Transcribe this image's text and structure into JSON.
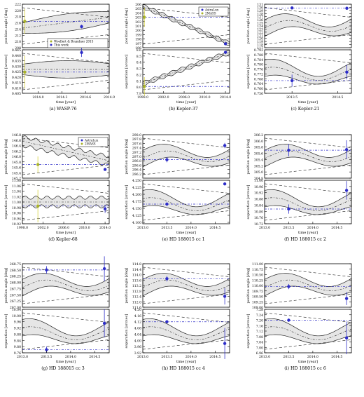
{
  "figure": {
    "panels": [
      {
        "id": "a",
        "caption": "(a) WASP-76"
      },
      {
        "id": "b",
        "caption": "(b) Kepler-37"
      },
      {
        "id": "c",
        "caption": "(c) Kepler-21"
      },
      {
        "id": "d",
        "caption": "(d) Kepler-68"
      },
      {
        "id": "e",
        "caption": "(e) HD 188015 cc 1"
      },
      {
        "id": "f",
        "caption": "(f) HD 188015 cc 2"
      },
      {
        "id": "g",
        "caption": "(g) HD 188015 cc 3"
      },
      {
        "id": "h",
        "caption": "(h) HD 188015 cc 4"
      },
      {
        "id": "i",
        "caption": "(i) HD 188015 cc 6"
      }
    ],
    "ylabel_pa": "position angle [deg]",
    "ylabel_sep": "separation [arcsec]",
    "xlabel": "time [year]"
  },
  "chart_data": [
    {
      "panel": "a",
      "type": "scatter",
      "xlim": [
        2013.8,
        2014.9
      ],
      "xticks": [
        "2014.0",
        "2014.3",
        "2014.6",
        "2014.9"
      ],
      "xticks_v": [
        2014.0,
        2014.3,
        2014.6,
        2014.9
      ],
      "pa": {
        "ylim": [
          208,
          222
        ],
        "yticks": [
          "208",
          "210",
          "212",
          "214",
          "216",
          "218",
          "220",
          "222"
        ],
        "yticks_v": [
          208,
          210,
          212,
          214,
          216,
          218,
          220,
          222
        ],
        "points": [
          {
            "x": 2013.83,
            "y": 216.5,
            "err": 4.0,
            "series": "Woellert & Brandner 2015"
          },
          {
            "x": 2014.55,
            "y": 214.8,
            "err": 0.6,
            "series": "This work"
          }
        ],
        "blue_line": 216.5,
        "band": {
          "upper": [
            218.8,
            219.5,
            219.9
          ],
          "lower": [
            212.0,
            214.0,
            216.3
          ],
          "mid": [
            215.5,
            216.5,
            217.8
          ]
        }
      },
      "sep": {
        "ylim": [
          0.405,
          0.445
        ],
        "yticks": [
          "0.405",
          "0.410",
          "0.415",
          "0.420",
          "0.425",
          "0.430",
          "0.435",
          "0.440",
          "0.445"
        ],
        "yticks_v": [
          0.405,
          0.41,
          0.415,
          0.42,
          0.425,
          0.43,
          0.435,
          0.44,
          0.445
        ],
        "points": [
          {
            "x": 2013.83,
            "y": 0.4245,
            "err": 0.015,
            "series": "Woellert & Brandner 2015"
          },
          {
            "x": 2014.55,
            "y": 0.4425,
            "err": 0.004,
            "series": "This work"
          }
        ],
        "blue_line": 0.4245
      },
      "legend": [
        "Woellert & Brandner 2015",
        "This work"
      ]
    },
    {
      "panel": "b",
      "type": "scatter",
      "xlim": [
        1998,
        2014.8
      ],
      "xticks": [
        "1998.0",
        "2002.0",
        "2006.0",
        "2010.0",
        "2014.0"
      ],
      "xticks_v": [
        1998,
        2002,
        2006,
        2010,
        2014
      ],
      "pa": {
        "ylim": [
          196,
          206
        ],
        "yticks": [
          "196",
          "197",
          "198",
          "199",
          "200",
          "201",
          "202",
          "203",
          "204",
          "205",
          "206"
        ],
        "yticks_v": [
          196,
          197,
          198,
          199,
          200,
          201,
          202,
          203,
          204,
          205,
          206
        ],
        "points": [
          {
            "x": 1998.3,
            "y": 203.0,
            "err": 2.2,
            "series": "2MASS"
          },
          {
            "x": 2014.0,
            "y": 196.9,
            "err": 0.15,
            "series": "AstraLux"
          }
        ]
      },
      "sep": {
        "ylim": [
          7.9,
          8.6
        ],
        "yticks": [
          "7.9",
          "8.0",
          "8.1",
          "8.2",
          "8.3",
          "8.4",
          "8.5",
          "8.6"
        ],
        "yticks_v": [
          7.9,
          8.0,
          8.1,
          8.2,
          8.3,
          8.4,
          8.5,
          8.6
        ],
        "points": [
          {
            "x": 1998.3,
            "y": 8.01,
            "err": 0.15,
            "series": "2MASS"
          },
          {
            "x": 2014.0,
            "y": 8.56,
            "err": 0.02,
            "series": "AstraLux"
          }
        ]
      },
      "legend": [
        "AstraLux",
        "2MASS"
      ]
    },
    {
      "panel": "c",
      "type": "scatter",
      "xlim": [
        2012.9,
        2014.8
      ],
      "xticks": [
        "2013.5",
        "2014.5"
      ],
      "xticks_v": [
        2013.5,
        2014.5
      ],
      "pa": {
        "ylim": [
          117,
          131
        ],
        "yticks": [
          "117",
          "118",
          "119",
          "120",
          "121",
          "122",
          "123",
          "124",
          "125",
          "126",
          "127",
          "128",
          "129",
          "130",
          "131"
        ],
        "yticks_v": [
          117,
          118,
          119,
          120,
          121,
          122,
          123,
          124,
          125,
          126,
          127,
          128,
          129,
          130,
          131
        ],
        "points": [
          {
            "x": 2013.5,
            "y": 129.8,
            "err": 0.5
          },
          {
            "x": 2014.7,
            "y": 129.7,
            "err": 0.4
          }
        ]
      },
      "sep": {
        "ylim": [
          0.756,
          0.792
        ],
        "yticks": [
          "0.756",
          "0.760",
          "0.764",
          "0.768",
          "0.772",
          "0.776",
          "0.780",
          "0.784",
          "0.788",
          "0.792"
        ],
        "yticks_v": [
          0.756,
          0.76,
          0.764,
          0.768,
          0.772,
          0.776,
          0.78,
          0.784,
          0.788,
          0.792
        ],
        "points": [
          {
            "x": 2013.5,
            "y": 0.7665,
            "err": 0.005
          },
          {
            "x": 2014.7,
            "y": 0.7735,
            "err": 0.006
          }
        ]
      }
    },
    {
      "panel": "d",
      "type": "scatter",
      "xlim": [
        1998,
        2014.8
      ],
      "xticks": [
        "1998.0",
        "2002.0",
        "2006.0",
        "2010.0",
        "2014.0"
      ],
      "xticks_v": [
        1998,
        2002,
        2006,
        2010,
        2014
      ],
      "pa": {
        "ylim": [
          145.2,
          146.8
        ],
        "yticks": [
          "145.2",
          "145.4",
          "145.6",
          "145.8",
          "146.0",
          "146.2",
          "146.4",
          "146.6",
          "146.8"
        ],
        "yticks_v": [
          145.2,
          145.4,
          145.6,
          145.8,
          146.0,
          146.2,
          146.4,
          146.6,
          146.8
        ],
        "points": [
          {
            "x": 2001.0,
            "y": 145.7,
            "err": 0.3,
            "series": "2MASS"
          },
          {
            "x": 2014.0,
            "y": 145.52,
            "err": 0.05,
            "series": "AstraLux"
          }
        ]
      },
      "sep": {
        "ylim": [
          10.92,
          11.08
        ],
        "yticks": [
          "10.92",
          "10.94",
          "10.96",
          "10.98",
          "11.00",
          "11.02",
          "11.04",
          "11.06",
          "11.08"
        ],
        "yticks_v": [
          10.92,
          10.94,
          10.96,
          10.98,
          11.0,
          11.02,
          11.04,
          11.06,
          11.08
        ],
        "points": [
          {
            "x": 2001.0,
            "y": 10.985,
            "err": 0.06,
            "series": "2MASS"
          },
          {
            "x": 2014.0,
            "y": 10.975,
            "err": 0.015,
            "series": "AstraLux"
          }
        ]
      },
      "legend": [
        "AstraLux",
        "2MASS"
      ]
    },
    {
      "panel": "e",
      "type": "scatter",
      "xlim": [
        2013.0,
        2014.8
      ],
      "xticks": [
        "2013.0",
        "2013.5",
        "2014.0",
        "2014.5"
      ],
      "xticks_v": [
        2013.0,
        2013.5,
        2014.0,
        2014.5
      ],
      "pa": {
        "ylim": [
          296.0,
          298.0
        ],
        "yticks": [
          "296.2",
          "296.4",
          "296.6",
          "296.8",
          "297.0",
          "297.2",
          "297.4",
          "297.6",
          "297.8",
          "298.0"
        ],
        "yticks_v": [
          296.2,
          296.4,
          296.6,
          296.8,
          297.0,
          297.2,
          297.4,
          297.6,
          297.8,
          298.0
        ],
        "points": [
          {
            "x": 2013.5,
            "y": 296.85,
            "err": 0.12
          },
          {
            "x": 2014.7,
            "y": 297.5,
            "err": 0.12
          }
        ]
      },
      "sep": {
        "ylim": [
          4.095,
          4.25
        ],
        "yticks": [
          "4.100",
          "4.125",
          "4.150",
          "4.175",
          "4.200",
          "4.225",
          "4.250"
        ],
        "yticks_v": [
          4.1,
          4.125,
          4.15,
          4.175,
          4.2,
          4.225,
          4.25
        ],
        "points": [
          {
            "x": 2013.5,
            "y": 4.165,
            "err": 0.006
          },
          {
            "x": 2014.7,
            "y": 4.237,
            "err": 0.005
          }
        ]
      }
    },
    {
      "panel": "f",
      "type": "scatter",
      "xlim": [
        2013.0,
        2014.8
      ],
      "xticks": [
        "2013.0",
        "2013.5",
        "2014.0",
        "2014.5"
      ],
      "xticks_v": [
        2013.0,
        2013.5,
        2014.0,
        2014.5
      ],
      "pa": {
        "ylim": [
          304.8,
          306.2
        ],
        "yticks": [
          "304.8",
          "305.0",
          "305.2",
          "305.4",
          "305.6",
          "305.8",
          "306.0",
          "306.2"
        ],
        "yticks_v": [
          304.8,
          305.0,
          305.2,
          305.4,
          305.6,
          305.8,
          306.0,
          306.2
        ],
        "points": [
          {
            "x": 2013.5,
            "y": 305.7,
            "err": 0.2
          },
          {
            "x": 2014.7,
            "y": 305.72,
            "err": 0.3
          }
        ]
      },
      "sep": {
        "ylim": [
          10.72,
          11.0
        ],
        "yticks": [
          "10.72",
          "10.76",
          "10.80",
          "10.84",
          "10.88",
          "10.92",
          "10.96",
          "11.00"
        ],
        "yticks_v": [
          10.72,
          10.76,
          10.8,
          10.84,
          10.88,
          10.92,
          10.96,
          11.0
        ],
        "points": [
          {
            "x": 2013.5,
            "y": 10.815,
            "err": 0.03
          },
          {
            "x": 2014.7,
            "y": 10.935,
            "err": 0.06
          }
        ]
      }
    },
    {
      "panel": "g",
      "type": "scatter",
      "xlim": [
        2013.0,
        2014.8
      ],
      "xticks": [
        "2013.0",
        "2013.5",
        "2014.0",
        "2014.5"
      ],
      "xticks_v": [
        2013.0,
        2013.5,
        2014.0,
        2014.5
      ],
      "pa": {
        "ylim": [
          267.0,
          268.75
        ],
        "yticks": [
          "267.00",
          "267.25",
          "267.50",
          "267.75",
          "268.00",
          "268.25",
          "268.50",
          "268.75"
        ],
        "yticks_v": [
          267.0,
          267.25,
          267.5,
          267.75,
          268.0,
          268.25,
          268.5,
          268.75
        ],
        "points": [
          {
            "x": 2013.5,
            "y": 268.5,
            "err": 0.15
          },
          {
            "x": 2014.7,
            "y": 268.55,
            "err": 0.5
          }
        ]
      },
      "sep": {
        "ylim": [
          9.76,
          10.04
        ],
        "yticks": [
          "9.76",
          "9.80",
          "9.84",
          "9.88",
          "9.92",
          "9.96",
          "10.00",
          "10.04"
        ],
        "yticks_v": [
          9.76,
          9.8,
          9.84,
          9.88,
          9.92,
          9.96,
          10.0,
          10.04
        ],
        "points": [
          {
            "x": 2013.5,
            "y": 9.78,
            "err": 0.02
          },
          {
            "x": 2014.7,
            "y": 9.95,
            "err": 0.09
          }
        ]
      }
    },
    {
      "panel": "h",
      "type": "scatter",
      "xlim": [
        2013.0,
        2014.8
      ],
      "xticks": [
        "2013.0",
        "2013.5",
        "2014.0",
        "2014.5"
      ],
      "xticks_v": [
        2013.0,
        2013.5,
        2014.0,
        2014.5
      ],
      "pa": {
        "ylim": [
          111.6,
          114.8
        ],
        "yticks": [
          "111.6",
          "112.0",
          "112.4",
          "112.8",
          "113.2",
          "113.6",
          "114.0",
          "114.4",
          "114.8"
        ],
        "yticks_v": [
          111.6,
          112.0,
          112.4,
          112.8,
          113.2,
          113.6,
          114.0,
          114.4,
          114.8
        ],
        "points": [
          {
            "x": 2013.5,
            "y": 113.7,
            "err": 0.2
          },
          {
            "x": 2014.7,
            "y": 112.4,
            "err": 0.6
          }
        ]
      },
      "sep": {
        "ylim": [
          3.92,
          4.2
        ],
        "yticks": [
          "3.92",
          "3.96",
          "4.00",
          "4.04",
          "4.08",
          "4.12",
          "4.16",
          "4.20"
        ],
        "yticks_v": [
          3.92,
          3.96,
          4.0,
          4.04,
          4.08,
          4.12,
          4.16,
          4.2
        ],
        "points": [
          {
            "x": 2013.5,
            "y": 4.12,
            "err": 0.01
          },
          {
            "x": 2014.7,
            "y": 3.98,
            "err": 0.1
          }
        ]
      }
    },
    {
      "panel": "i",
      "type": "scatter",
      "xlim": [
        2013.0,
        2014.8
      ],
      "xticks": [
        "2013.0",
        "2013.5",
        "2014.0",
        "2014.5"
      ],
      "xticks_v": [
        2013.0,
        2013.5,
        2014.0,
        2014.5
      ],
      "pa": {
        "ylim": [
          109.0,
          111.0
        ],
        "yticks": [
          "109.00",
          "109.25",
          "109.50",
          "109.75",
          "110.00",
          "110.25",
          "110.50",
          "110.75",
          "111.00"
        ],
        "yticks_v": [
          109.0,
          109.25,
          109.5,
          109.75,
          110.0,
          110.25,
          110.5,
          110.75,
          111.0
        ],
        "points": [
          {
            "x": 2013.5,
            "y": 109.95,
            "err": 0.12
          },
          {
            "x": 2014.7,
            "y": 109.4,
            "err": 0.3
          }
        ]
      },
      "sep": {
        "ylim": [
          6.96,
          7.28
        ],
        "yticks": [
          "6.96",
          "7.00",
          "7.04",
          "7.08",
          "7.12",
          "7.16",
          "7.20",
          "7.24",
          "7.28"
        ],
        "yticks_v": [
          6.96,
          7.0,
          7.04,
          7.08,
          7.12,
          7.16,
          7.2,
          7.24,
          7.28
        ],
        "points": [
          {
            "x": 2013.5,
            "y": 7.2,
            "err": 0.012
          },
          {
            "x": 2014.7,
            "y": 7.07,
            "err": 0.12
          }
        ]
      }
    }
  ],
  "colors": {
    "band": "#e6e6e6",
    "blue": "#2d2dc8",
    "olive": "#a8b22a",
    "yellow": "#d7d23c"
  }
}
